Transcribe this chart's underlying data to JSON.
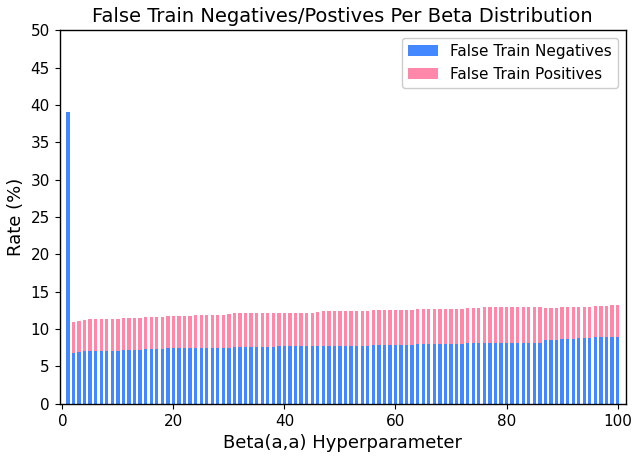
{
  "title": "False Train Negatives/Postives Per Beta Distribution",
  "xlabel": "Beta(a,a) Hyperparameter",
  "ylabel": "Rate (%)",
  "xlim": [
    -0.5,
    101.5
  ],
  "ylim": [
    0,
    50
  ],
  "x_ticks": [
    0,
    20,
    40,
    60,
    80,
    100
  ],
  "y_ticks": [
    0,
    5,
    10,
    15,
    20,
    25,
    30,
    35,
    40,
    45,
    50
  ],
  "bar_width": 0.6,
  "color_negatives": "#4488ff",
  "color_positives": "#ff88aa",
  "legend_labels": [
    "False Train Negatives",
    "False Train Positives"
  ],
  "a_values": [
    1,
    2,
    3,
    4,
    5,
    6,
    7,
    8,
    9,
    10,
    11,
    12,
    13,
    14,
    15,
    16,
    17,
    18,
    19,
    20,
    21,
    22,
    23,
    24,
    25,
    26,
    27,
    28,
    29,
    30,
    31,
    32,
    33,
    34,
    35,
    36,
    37,
    38,
    39,
    40,
    41,
    42,
    43,
    44,
    45,
    46,
    47,
    48,
    49,
    50,
    51,
    52,
    53,
    54,
    55,
    56,
    57,
    58,
    59,
    60,
    61,
    62,
    63,
    64,
    65,
    66,
    67,
    68,
    69,
    70,
    71,
    72,
    73,
    74,
    75,
    76,
    77,
    78,
    79,
    80,
    81,
    82,
    83,
    84,
    85,
    86,
    87,
    88,
    89,
    90,
    91,
    92,
    93,
    94,
    95,
    96,
    97,
    98,
    99,
    100
  ],
  "false_negatives": [
    39.0,
    6.8,
    6.9,
    7.0,
    7.0,
    7.0,
    7.1,
    7.1,
    7.1,
    7.1,
    7.2,
    7.2,
    7.2,
    7.2,
    7.3,
    7.3,
    7.3,
    7.3,
    7.4,
    7.4,
    7.4,
    7.4,
    7.4,
    7.5,
    7.5,
    7.5,
    7.5,
    7.5,
    7.5,
    7.5,
    7.6,
    7.6,
    7.6,
    7.6,
    7.6,
    7.6,
    7.6,
    7.6,
    7.7,
    7.7,
    7.7,
    7.7,
    7.7,
    7.7,
    7.7,
    7.7,
    7.8,
    7.8,
    7.8,
    7.8,
    7.8,
    7.8,
    7.8,
    7.8,
    7.8,
    7.9,
    7.9,
    7.9,
    7.9,
    7.9,
    7.9,
    7.9,
    7.9,
    8.0,
    8.0,
    8.0,
    8.0,
    8.0,
    8.0,
    8.0,
    8.0,
    8.0,
    8.1,
    8.1,
    8.1,
    8.1,
    8.1,
    8.1,
    8.1,
    8.1,
    8.1,
    8.2,
    8.2,
    8.2,
    8.2,
    8.2,
    8.5,
    8.5,
    8.5,
    8.7,
    8.7,
    8.7,
    8.8,
    8.8,
    8.8,
    8.9,
    8.9,
    8.9,
    9.0,
    9.0
  ],
  "false_positives": [
    0.0,
    4.2,
    4.2,
    4.2,
    4.3,
    4.3,
    4.3,
    4.3,
    4.3,
    4.3,
    4.3,
    4.3,
    4.3,
    4.3,
    4.3,
    4.3,
    4.3,
    4.3,
    4.3,
    4.4,
    4.4,
    4.4,
    4.4,
    4.4,
    4.4,
    4.4,
    4.4,
    4.4,
    4.4,
    4.5,
    4.5,
    4.5,
    4.5,
    4.5,
    4.5,
    4.5,
    4.5,
    4.5,
    4.5,
    4.5,
    4.5,
    4.5,
    4.5,
    4.5,
    4.5,
    4.6,
    4.6,
    4.6,
    4.6,
    4.6,
    4.6,
    4.6,
    4.6,
    4.6,
    4.6,
    4.6,
    4.6,
    4.6,
    4.6,
    4.7,
    4.7,
    4.7,
    4.7,
    4.7,
    4.7,
    4.7,
    4.7,
    4.7,
    4.7,
    4.7,
    4.7,
    4.7,
    4.7,
    4.7,
    4.7,
    4.8,
    4.8,
    4.8,
    4.8,
    4.8,
    4.8,
    4.8,
    4.8,
    4.8,
    4.8,
    4.8,
    4.3,
    4.3,
    4.3,
    4.2,
    4.2,
    4.2,
    4.2,
    4.2,
    4.2,
    4.2,
    4.2,
    4.2,
    4.2,
    4.2
  ],
  "figsize": [
    6.4,
    4.59
  ],
  "dpi": 100,
  "title_fontsize": 14,
  "label_fontsize": 13,
  "tick_fontsize": 11,
  "legend_fontsize": 11
}
